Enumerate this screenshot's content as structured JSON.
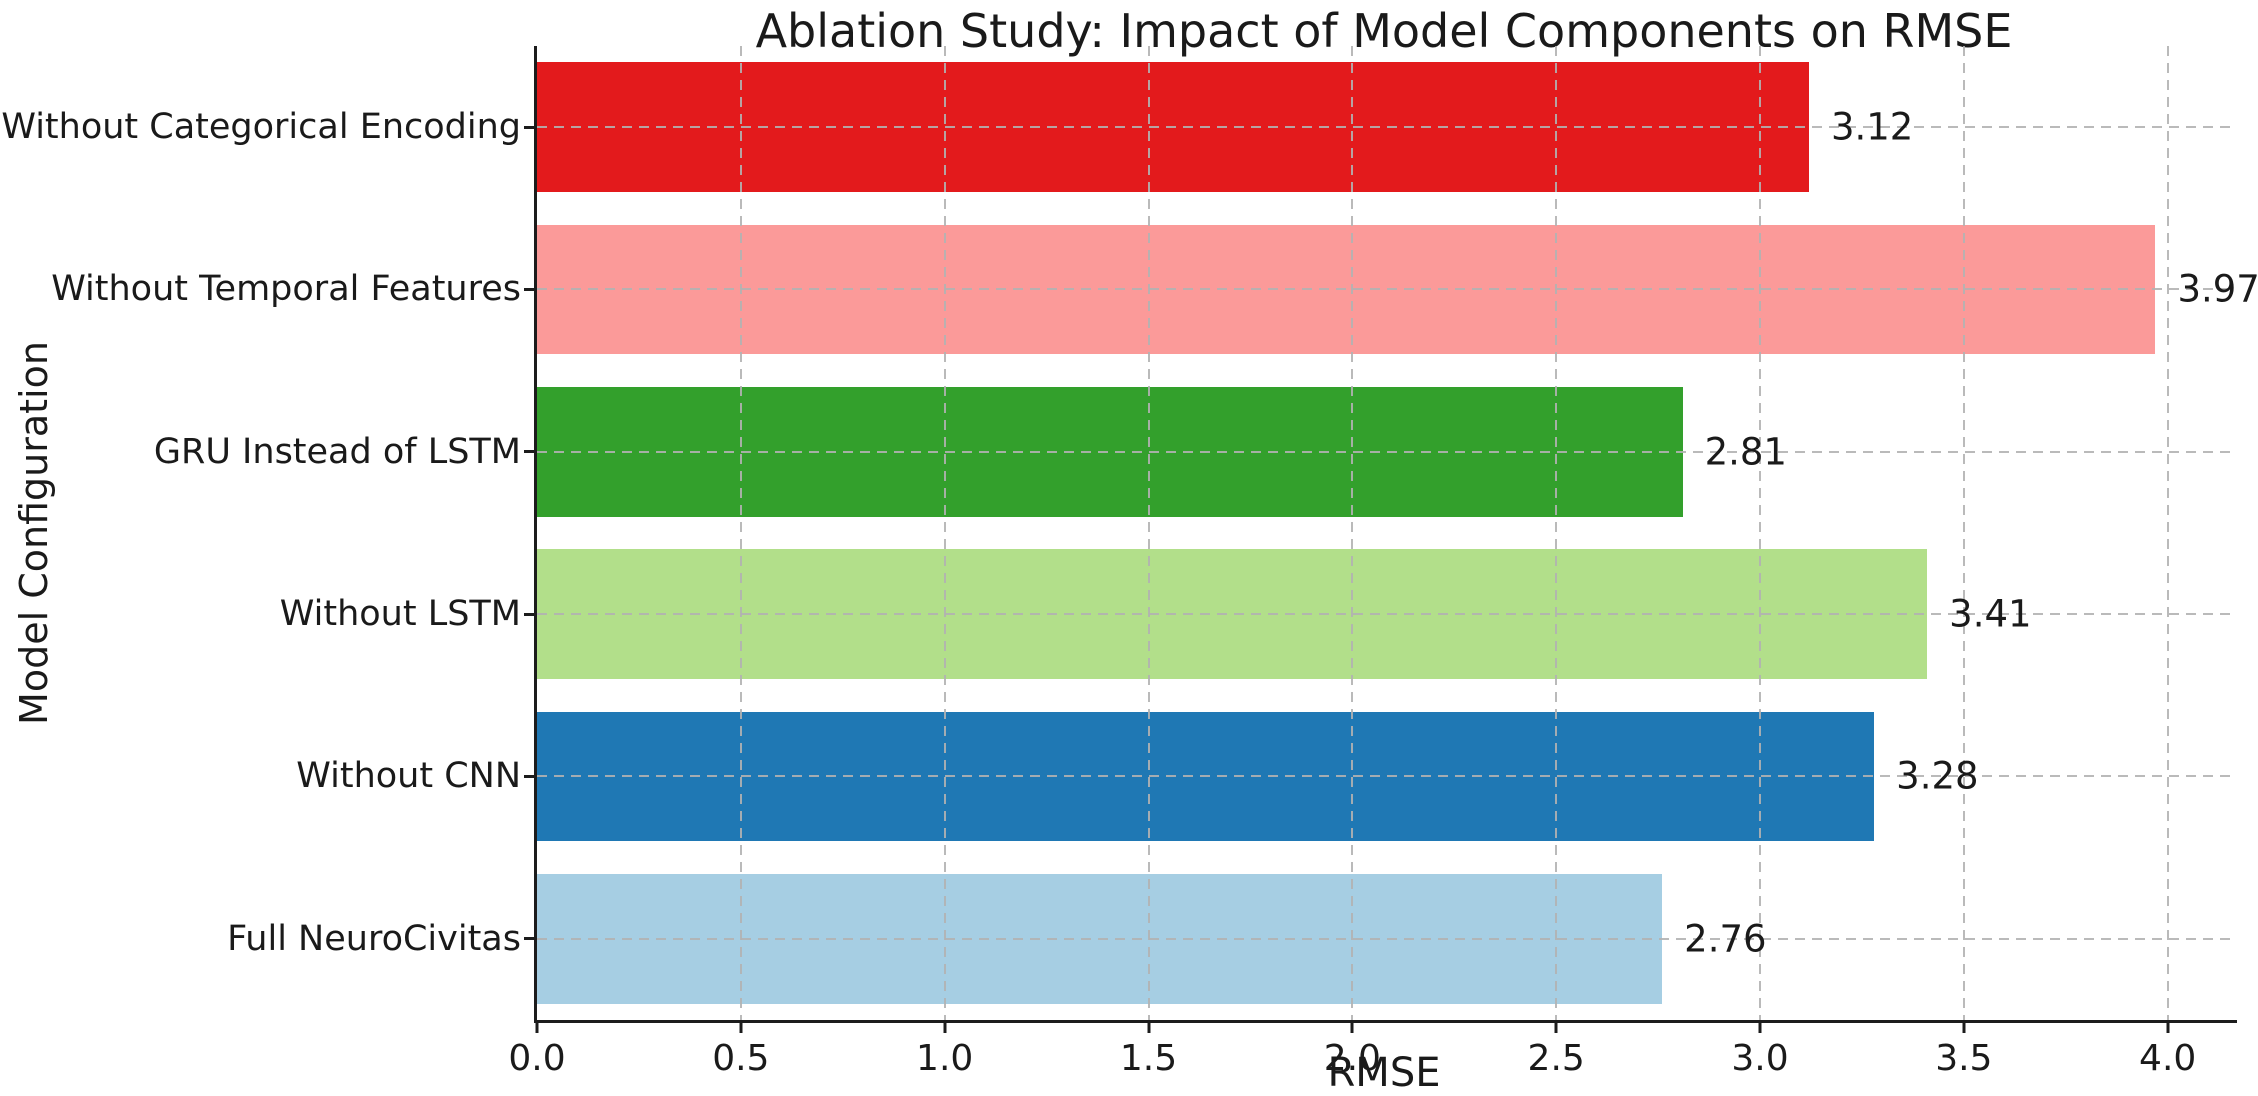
{
  "chart_data": {
    "type": "bar",
    "orientation": "horizontal",
    "title": "Ablation Study: Impact of Model Components on RMSE",
    "xlabel": "RMSE",
    "ylabel": "Model Configuration",
    "categories": [
      "Without Categorical Encoding",
      "Without Temporal Features",
      "GRU Instead of LSTM",
      "Without LSTM",
      "Without CNN",
      "Full NeuroCivitas"
    ],
    "values": [
      3.12,
      3.97,
      2.81,
      3.41,
      3.28,
      2.76
    ],
    "value_labels": [
      "3.12",
      "3.97",
      "2.81",
      "3.41",
      "3.28",
      "2.76"
    ],
    "bar_colors": [
      "#e31a1c",
      "#fb9a99",
      "#33a02c",
      "#b2df8a",
      "#1f78b4",
      "#a6cee3"
    ],
    "xticks": [
      {
        "value": 0.0,
        "label": "0.0"
      },
      {
        "value": 0.5,
        "label": "0.5"
      },
      {
        "value": 1.0,
        "label": "1.0"
      },
      {
        "value": 1.5,
        "label": "1.5"
      },
      {
        "value": 2.0,
        "label": "2.0"
      },
      {
        "value": 2.5,
        "label": "2.5"
      },
      {
        "value": 3.0,
        "label": "3.0"
      },
      {
        "value": 3.5,
        "label": "3.5"
      },
      {
        "value": 4.0,
        "label": "4.0"
      },
      {
        "value": 4.17,
        "label": ""
      }
    ],
    "xlim": [
      0,
      4.17
    ],
    "grid": {
      "style": "dashed",
      "color": "#b2b2b2",
      "axes": "both",
      "above_bars": true
    },
    "legend": "none",
    "spine_color": "#1c1c1c",
    "text_color": "#1a1a1a",
    "background_color": "#ffffff"
  }
}
